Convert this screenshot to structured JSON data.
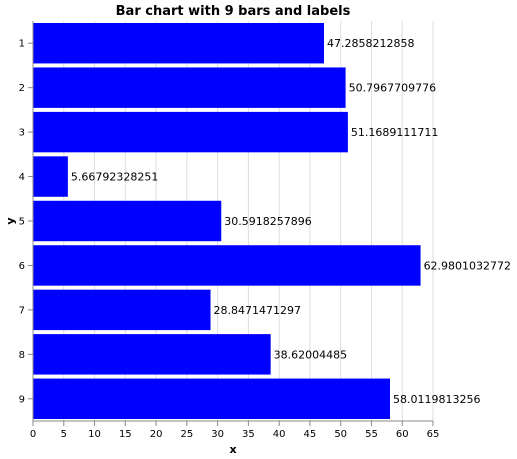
{
  "chart_data": {
    "type": "bar",
    "orientation": "horizontal",
    "title": "Bar chart with 9 bars and labels",
    "xlabel": "x",
    "ylabel": "y",
    "categories": [
      "1",
      "2",
      "3",
      "4",
      "5",
      "6",
      "7",
      "8",
      "9"
    ],
    "values": [
      47.2858212858,
      50.7967709776,
      51.1689111711,
      5.66792328251,
      30.5918257896,
      62.9801032772,
      28.8471471297,
      38.62004485,
      58.0119813256
    ],
    "data_labels": [
      "47.2858212858",
      "50.7967709776",
      "51.1689111711",
      "5.66792328251",
      "30.5918257896",
      "62.9801032772",
      "28.8471471297",
      "38.62004485",
      "58.0119813256"
    ],
    "xlim": [
      0,
      65
    ],
    "x_ticks": [
      "0",
      "5",
      "10",
      "15",
      "20",
      "25",
      "30",
      "35",
      "40",
      "45",
      "50",
      "55",
      "60",
      "65"
    ],
    "grid": true,
    "legend": false,
    "bar_color": "#0000ff"
  }
}
